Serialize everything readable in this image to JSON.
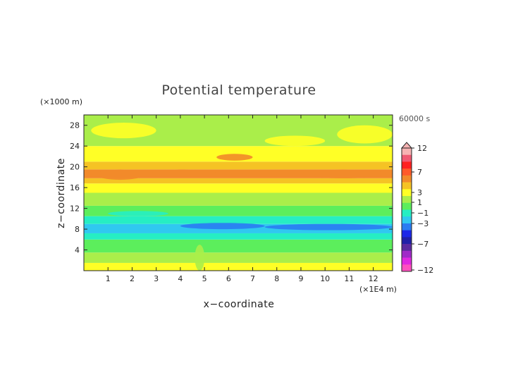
{
  "chart_data": {
    "type": "heatmap",
    "title": "Potential temperature",
    "xlabel": "x−coordinate",
    "ylabel": "z−coordinate",
    "x_unit": "(×1E4 m)",
    "y_unit": "(×1000 m)",
    "time_label": "60000 s",
    "xlim": [
      0,
      12.8
    ],
    "ylim": [
      0,
      30
    ],
    "x_ticks": [
      "1",
      "2",
      "3",
      "4",
      "5",
      "6",
      "7",
      "8",
      "9",
      "10",
      "11",
      "12"
    ],
    "y_ticks": [
      "4",
      "8",
      "12",
      "16",
      "20",
      "24",
      "28"
    ],
    "colorbar": {
      "labels": [
        "12",
        "7",
        "3",
        "1",
        "−1",
        "−3",
        "−7",
        "−12"
      ],
      "colors_top_to_bottom": [
        "#f7b3b3",
        "#f05a73",
        "#ff2020",
        "#ff5a2a",
        "#f28a2a",
        "#f5c324",
        "#ffff26",
        "#aaee4a",
        "#5cee5c",
        "#26eec3",
        "#30c8f0",
        "#2a7cf2",
        "#1c28e8",
        "#2020a8",
        "#5a2aa0",
        "#a02ac8",
        "#e028e0",
        "#ff50c0"
      ],
      "extend_top": true
    },
    "bands": [
      {
        "z_from": 0.0,
        "z_to": 1.5,
        "level": "1",
        "color": "#ffff26"
      },
      {
        "z_from": 1.5,
        "z_to": 3.5,
        "level": "0",
        "color": "#aaee4a"
      },
      {
        "z_from": 3.5,
        "z_to": 6.0,
        "level": "-1",
        "color": "#5cee5c"
      },
      {
        "z_from": 6.0,
        "z_to": 7.2,
        "level": "-2",
        "color": "#26eec3"
      },
      {
        "z_from": 7.2,
        "z_to": 9.0,
        "level": "-3",
        "color": "#30c8f0"
      },
      {
        "z_from": 9.0,
        "z_to": 10.5,
        "level": "-2",
        "color": "#26eec3"
      },
      {
        "z_from": 10.5,
        "z_to": 12.5,
        "level": "-1",
        "color": "#5cee5c"
      },
      {
        "z_from": 12.5,
        "z_to": 15.0,
        "level": "0",
        "color": "#aaee4a"
      },
      {
        "z_from": 15.0,
        "z_to": 16.8,
        "level": "1",
        "color": "#ffff26"
      },
      {
        "z_from": 16.8,
        "z_to": 17.8,
        "level": "2",
        "color": "#f5c324"
      },
      {
        "z_from": 17.8,
        "z_to": 19.5,
        "level": "3",
        "color": "#f28a2a"
      },
      {
        "z_from": 19.5,
        "z_to": 21.0,
        "level": "2",
        "color": "#f5c324"
      },
      {
        "z_from": 21.0,
        "z_to": 24.0,
        "level": "1",
        "color": "#ffff26"
      },
      {
        "z_from": 24.0,
        "z_to": 30.0,
        "level": "0",
        "color": "#aaee4a"
      }
    ],
    "features": [
      {
        "x": [
          1.0,
          3.5
        ],
        "z": [
          10.5,
          11.5
        ],
        "level": "-2",
        "color": "#26eec3"
      },
      {
        "x": [
          4.0,
          7.5
        ],
        "z": [
          8.0,
          9.2
        ],
        "level": "-4",
        "color": "#2a7cf2"
      },
      {
        "x": [
          7.5,
          12.8
        ],
        "z": [
          7.8,
          9.0
        ],
        "level": "-4",
        "color": "#2a7cf2"
      },
      {
        "x": [
          0.5,
          2.5
        ],
        "z": [
          17.5,
          19.5
        ],
        "level": "3",
        "color": "#f28a2a"
      },
      {
        "x": [
          2.8,
          5.5
        ],
        "z": [
          18.0,
          19.5
        ],
        "level": "3",
        "color": "#f28a2a"
      },
      {
        "x": [
          9.0,
          12.5
        ],
        "z": [
          17.8,
          19.5
        ],
        "level": "3",
        "color": "#f28a2a"
      },
      {
        "x": [
          5.5,
          7.0
        ],
        "z": [
          21.2,
          22.5
        ],
        "level": "3",
        "color": "#f28a2a"
      },
      {
        "x": [
          7.5,
          10.0
        ],
        "z": [
          24.0,
          26.0
        ],
        "level": "1",
        "color": "#ffff26"
      },
      {
        "x": [
          0.3,
          3.0
        ],
        "z": [
          25.5,
          28.5
        ],
        "level": "1",
        "color": "#ffff26"
      },
      {
        "x": [
          10.5,
          12.8
        ],
        "z": [
          24.5,
          28.0
        ],
        "level": "1",
        "color": "#ffff26"
      },
      {
        "x": [
          4.6,
          5.0
        ],
        "z": [
          0.0,
          5.0
        ],
        "level": "0",
        "color": "#aaee4a"
      }
    ]
  }
}
